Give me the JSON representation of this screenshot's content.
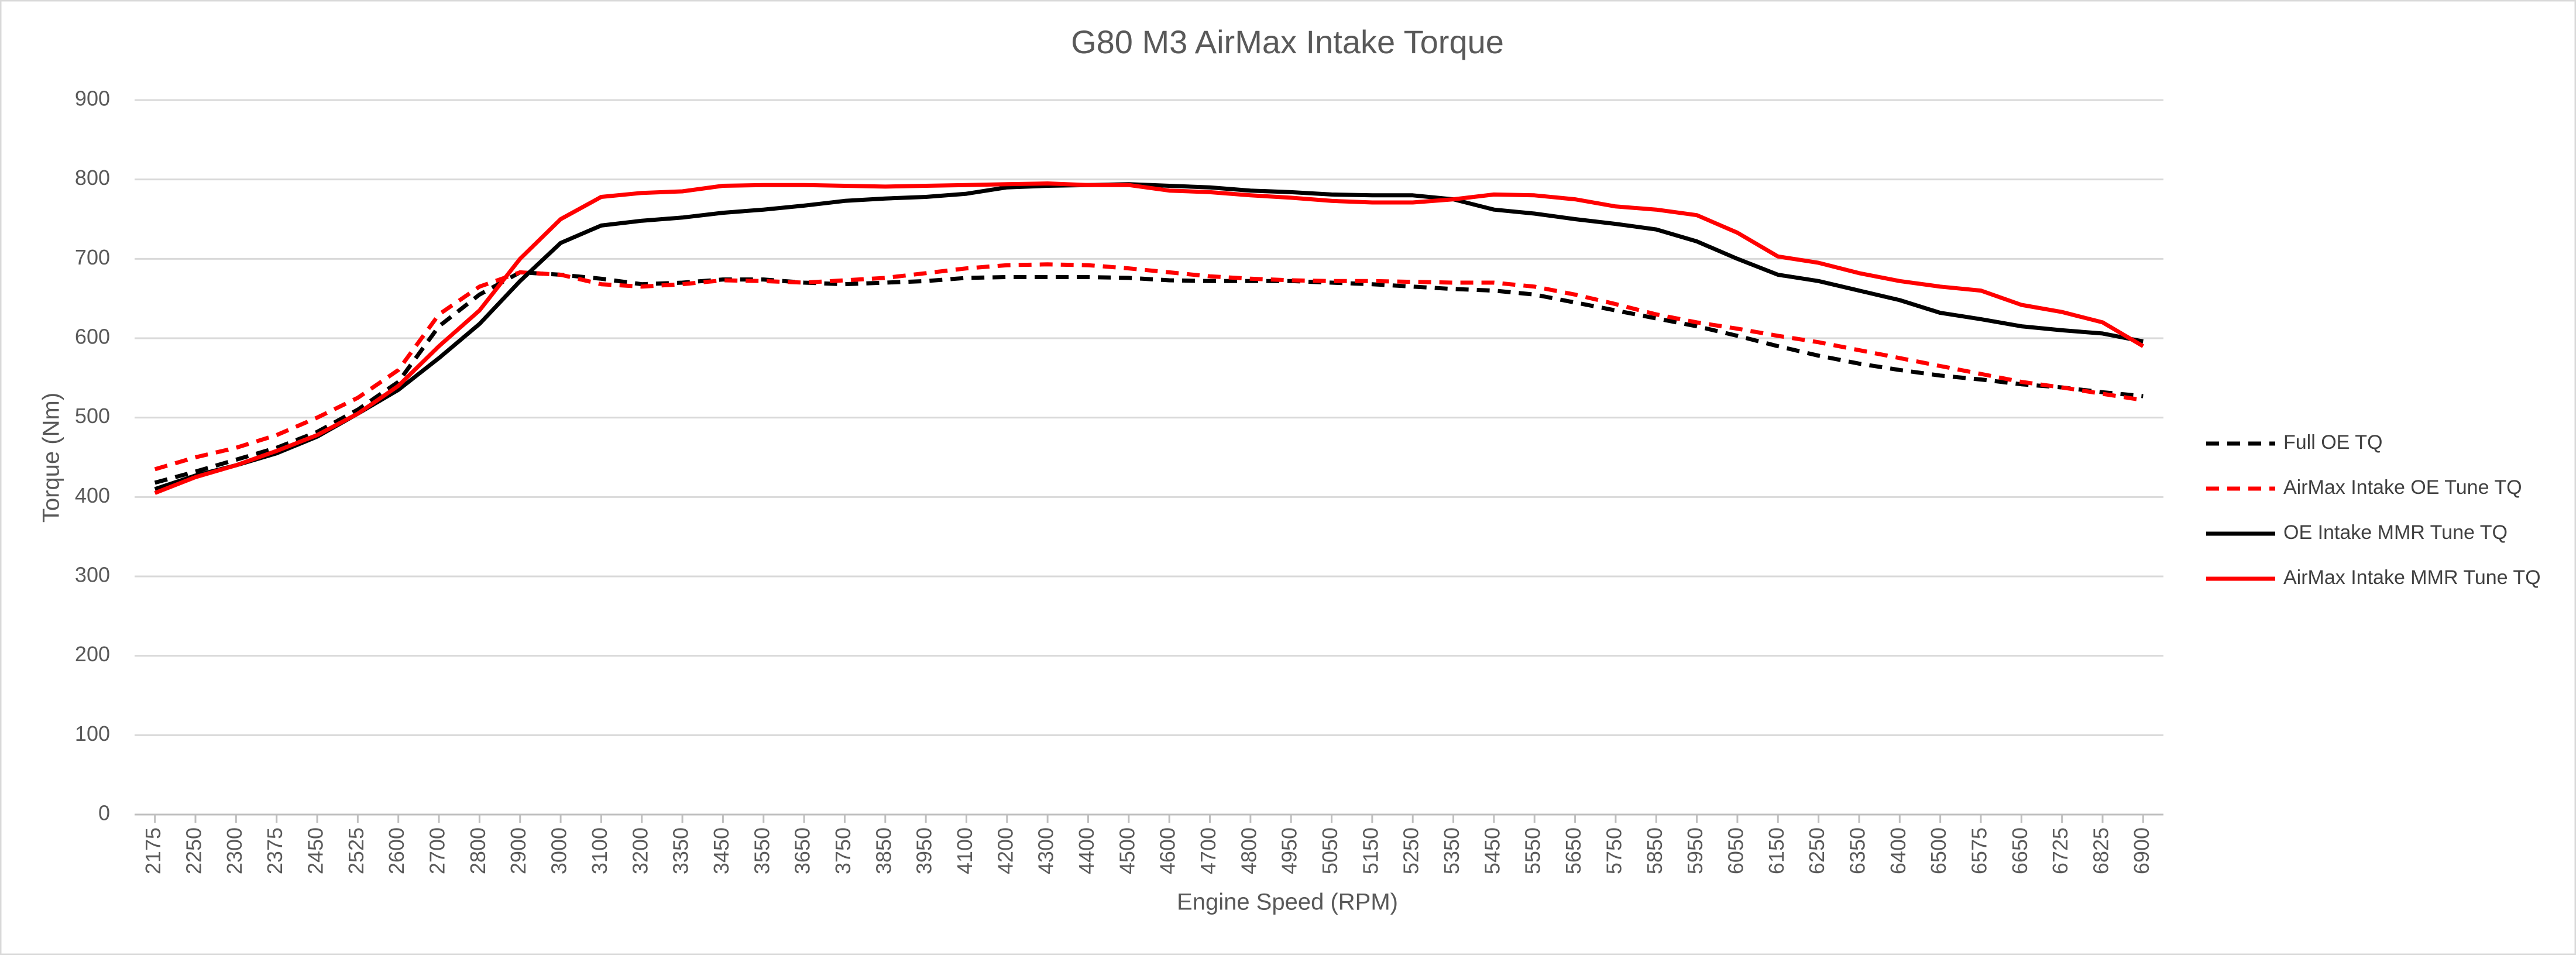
{
  "chart_data": {
    "type": "line",
    "title": "G80 M3 AirMax Intake Torque",
    "x_label": "Engine Speed (RPM)",
    "y_label": "Torque (Nm)",
    "categories": [
      "2175",
      "2250",
      "2300",
      "2375",
      "2450",
      "2525",
      "2600",
      "2700",
      "2800",
      "2900",
      "3000",
      "3100",
      "3200",
      "3350",
      "3450",
      "3550",
      "3650",
      "3750",
      "3850",
      "3950",
      "4100",
      "4200",
      "4300",
      "4400",
      "4500",
      "4600",
      "4700",
      "4800",
      "4950",
      "5050",
      "5150",
      "5250",
      "5350",
      "5450",
      "5550",
      "5650",
      "5750",
      "5850",
      "5950",
      "6050",
      "6150",
      "6250",
      "6350",
      "6400",
      "6500",
      "6575",
      "6650",
      "6725",
      "6825",
      "6900"
    ],
    "series": [
      {
        "name": "Full OE TQ",
        "color": "#000000",
        "dashed": true,
        "values": [
          418,
          432,
          447,
          462,
          482,
          510,
          545,
          615,
          655,
          683,
          680,
          675,
          668,
          670,
          674,
          674,
          670,
          668,
          670,
          672,
          676,
          677,
          677,
          677,
          676,
          673,
          672,
          672,
          672,
          670,
          668,
          665,
          662,
          660,
          655,
          645,
          635,
          625,
          615,
          603,
          590,
          578,
          568,
          560,
          553,
          548,
          542,
          538,
          532,
          527
        ]
      },
      {
        "name": "AirMax Intake OE Tune TQ",
        "color": "#ff0000",
        "dashed": true,
        "values": [
          435,
          450,
          462,
          478,
          500,
          525,
          560,
          630,
          665,
          683,
          680,
          668,
          665,
          668,
          673,
          672,
          670,
          673,
          676,
          682,
          688,
          692,
          693,
          692,
          688,
          683,
          678,
          675,
          673,
          672,
          672,
          671,
          670,
          670,
          665,
          655,
          643,
          630,
          620,
          612,
          603,
          595,
          585,
          575,
          565,
          555,
          545,
          538,
          530,
          522
        ]
      },
      {
        "name": "OE Intake MMR Tune TQ",
        "color": "#000000",
        "dashed": false,
        "values": [
          410,
          427,
          440,
          455,
          476,
          505,
          535,
          575,
          618,
          672,
          720,
          742,
          748,
          752,
          758,
          762,
          767,
          773,
          776,
          778,
          782,
          790,
          792,
          793,
          794,
          792,
          790,
          786,
          784,
          781,
          780,
          780,
          775,
          762,
          757,
          750,
          744,
          737,
          722,
          700,
          680,
          672,
          660,
          648,
          632,
          624,
          615,
          610,
          606,
          596
        ]
      },
      {
        "name": "AirMax Intake MMR Tune TQ",
        "color": "#ff0000",
        "dashed": false,
        "values": [
          405,
          425,
          440,
          458,
          478,
          505,
          540,
          590,
          635,
          700,
          750,
          778,
          783,
          785,
          792,
          793,
          793,
          792,
          791,
          792,
          793,
          794,
          795,
          793,
          793,
          786,
          784,
          780,
          777,
          773,
          771,
          771,
          775,
          781,
          780,
          775,
          766,
          762,
          755,
          733,
          703,
          695,
          682,
          672,
          665,
          660,
          642,
          633,
          620,
          590
        ]
      }
    ],
    "ylim": [
      0,
      900
    ],
    "yticks": [
      0,
      100,
      200,
      300,
      400,
      500,
      600,
      700,
      800,
      900
    ],
    "grid": true
  }
}
